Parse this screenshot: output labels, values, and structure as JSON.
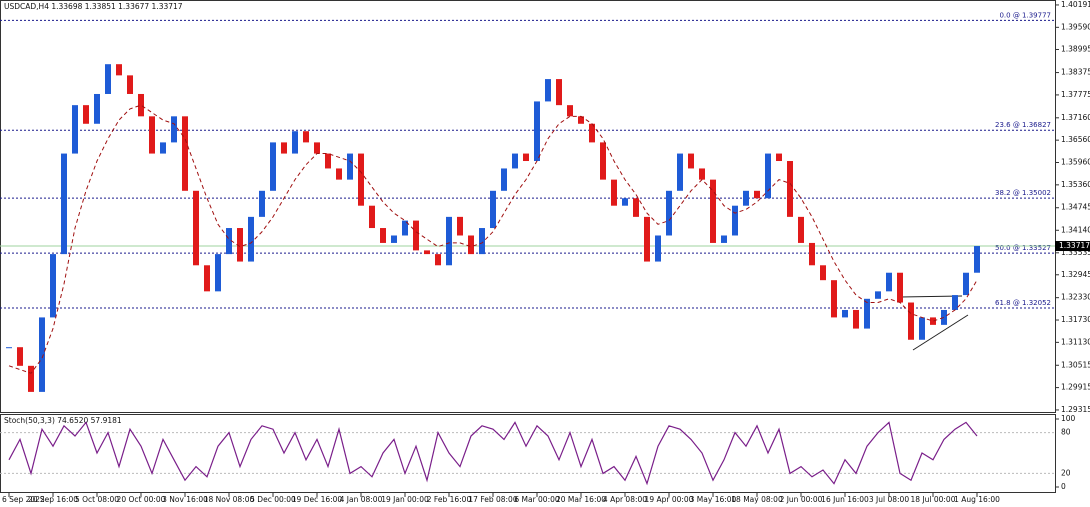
{
  "chart_data": {
    "type": "candlestick",
    "title": "USDCAD,H4  1.33698 1.33851 1.33677 1.33717",
    "up_color": "#1e5bd6",
    "down_color": "#e01a1a",
    "categories": [
      "6 Sep 2022",
      null,
      null,
      null,
      "20 Sep 16:00",
      null,
      null,
      null,
      "5 Oct 08:00",
      null,
      null,
      null,
      "20 Oct 00:00",
      null,
      null,
      null,
      "3 Nov 16:00",
      null,
      null,
      null,
      "18 Nov 08:00",
      null,
      null,
      null,
      "5 Dec 00:00",
      null,
      null,
      null,
      "19 Dec 16:00",
      null,
      null,
      null,
      "4 Jan 08:00",
      null,
      null,
      null,
      "19 Jan 00:00",
      null,
      null,
      null,
      "2 Feb 16:00",
      null,
      null,
      null,
      "17 Feb 08:00",
      null,
      null,
      null,
      "6 Mar 00:00",
      null,
      null,
      null,
      "20 Mar 16:00",
      null,
      null,
      null,
      "4 Apr 08:00",
      null,
      null,
      null,
      "19 Apr 00:00",
      null,
      null,
      null,
      "3 May 16:00",
      null,
      null,
      null,
      "18 May 08:00",
      null,
      null,
      null,
      "2 Jun 00:00",
      null,
      null,
      null,
      "16 Jun 16:00",
      null,
      null,
      null,
      "3 Jul 08:00",
      null,
      null,
      null,
      "18 Jul 00:00",
      null,
      null,
      null,
      "1 Aug 16:00"
    ],
    "values": [
      1.31,
      1.305,
      1.298,
      1.318,
      1.335,
      1.362,
      1.375,
      1.37,
      1.378,
      1.386,
      1.383,
      1.378,
      1.372,
      1.362,
      1.365,
      1.372,
      1.352,
      1.332,
      1.325,
      1.335,
      1.342,
      1.333,
      1.345,
      1.352,
      1.365,
      1.362,
      1.368,
      1.365,
      1.362,
      1.358,
      1.355,
      1.362,
      1.348,
      1.342,
      1.338,
      1.34,
      1.344,
      1.336,
      1.335,
      1.332,
      1.345,
      1.34,
      1.335,
      1.342,
      1.352,
      1.358,
      1.362,
      1.36,
      1.376,
      1.382,
      1.375,
      1.372,
      1.37,
      1.365,
      1.355,
      1.348,
      1.35,
      1.345,
      1.333,
      1.34,
      1.352,
      1.362,
      1.358,
      1.355,
      1.338,
      1.34,
      1.348,
      1.352,
      1.35,
      1.362,
      1.36,
      1.345,
      1.338,
      1.332,
      1.328,
      1.318,
      1.32,
      1.315,
      1.323,
      1.325,
      1.33,
      1.322,
      1.312,
      1.318,
      1.316,
      1.32,
      1.324,
      1.33,
      1.33717
    ],
    "ma": {
      "color": "#a01010",
      "values": [
        1.305,
        1.304,
        1.303,
        1.307,
        1.315,
        1.327,
        1.342,
        1.352,
        1.36,
        1.366,
        1.371,
        1.374,
        1.375,
        1.373,
        1.371,
        1.37,
        1.366,
        1.358,
        1.35,
        1.343,
        1.339,
        1.337,
        1.338,
        1.341,
        1.345,
        1.35,
        1.355,
        1.359,
        1.362,
        1.362,
        1.361,
        1.36,
        1.357,
        1.353,
        1.349,
        1.346,
        1.344,
        1.341,
        1.339,
        1.337,
        1.338,
        1.338,
        1.337,
        1.338,
        1.341,
        1.346,
        1.351,
        1.355,
        1.36,
        1.366,
        1.37,
        1.372,
        1.372,
        1.37,
        1.366,
        1.36,
        1.355,
        1.351,
        1.346,
        1.343,
        1.344,
        1.348,
        1.352,
        1.355,
        1.352,
        1.348,
        1.346,
        1.347,
        1.349,
        1.352,
        1.355,
        1.354,
        1.35,
        1.345,
        1.339,
        1.333,
        1.328,
        1.324,
        1.322,
        1.322,
        1.323,
        1.322,
        1.319,
        1.318,
        1.317,
        1.318,
        1.32,
        1.323,
        1.328
      ]
    },
    "ylim": [
      1.2926,
      1.4027
    ],
    "yticks": [
      1.40191,
      {
        "value": 1.3959,
        "label": "1.39590"
      },
      1.38995,
      1.38375,
      1.37775,
      {
        "value": 1.3716,
        "label": "1.37160"
      },
      {
        "value": 1.3656,
        "label": "1.36560"
      },
      {
        "value": 1.3596,
        "label": "1.35960"
      },
      {
        "value": 1.3536,
        "label": "1.35360"
      },
      1.34745,
      {
        "value": 1.3414,
        "label": "1.34140"
      },
      1.33535,
      1.32945,
      {
        "value": 1.3233,
        "label": "1.32330"
      },
      {
        "value": 1.3173,
        "label": "1.31730"
      },
      {
        "value": 1.3113,
        "label": "1.31130"
      },
      1.30515,
      1.29915,
      1.29315
    ],
    "current_price": 1.33717,
    "fib_levels": [
      {
        "label": "0.0 @ 1.39777",
        "value": 1.39777
      },
      {
        "label": "23.6 @ 1.36827",
        "value": 1.36827
      },
      {
        "label": "38.2 @ 1.35002",
        "value": 1.35002
      },
      {
        "label": "50.0 @ 1.33527",
        "value": 1.33527
      },
      {
        "label": "61.8 @ 1.32052",
        "value": 1.32052
      }
    ],
    "stoch": {
      "label": "Stoch(50,3,3) 74.6520 57.9181",
      "color": "#7a1f8a",
      "values": [
        40,
        70,
        20,
        85,
        60,
        90,
        75,
        95,
        50,
        80,
        30,
        85,
        60,
        20,
        70,
        40,
        10,
        30,
        15,
        60,
        80,
        30,
        70,
        90,
        85,
        50,
        80,
        40,
        70,
        30,
        85,
        20,
        30,
        15,
        50,
        70,
        20,
        60,
        10,
        80,
        50,
        30,
        75,
        90,
        85,
        70,
        95,
        60,
        90,
        75,
        40,
        80,
        30,
        70,
        20,
        30,
        10,
        45,
        5,
        60,
        90,
        85,
        70,
        50,
        10,
        40,
        80,
        60,
        90,
        50,
        85,
        20,
        30,
        15,
        25,
        5,
        40,
        20,
        60,
        80,
        95,
        20,
        10,
        50,
        40,
        70,
        85,
        95,
        75
      ]
    },
    "y2lim": [
      0,
      100
    ],
    "y2ticks": [
      100,
      80,
      20,
      0
    ]
  }
}
